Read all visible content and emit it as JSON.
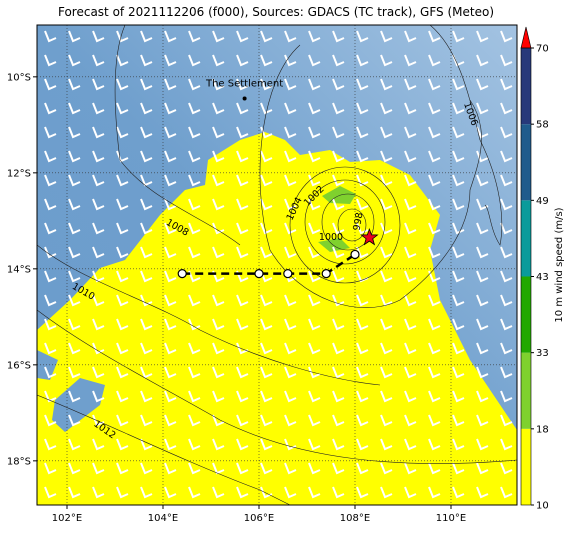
{
  "title": "Forecast of 2021112206 (f000), Sources: GDACS (TC track), GFS (Meteo)",
  "map": {
    "xlim": [
      101.375,
      111.375
    ],
    "ylim": [
      -18.92,
      -8.92
    ],
    "xticks": [
      {
        "value": 102,
        "label": "102°E"
      },
      {
        "value": 104,
        "label": "104°E"
      },
      {
        "value": 106,
        "label": "106°E"
      },
      {
        "value": 108,
        "label": "108°E"
      },
      {
        "value": 110,
        "label": "110°E"
      }
    ],
    "yticks": [
      {
        "value": -10,
        "label": "10°S"
      },
      {
        "value": -12,
        "label": "12°S"
      },
      {
        "value": -14,
        "label": "14°S"
      },
      {
        "value": -16,
        "label": "16°S"
      },
      {
        "value": -18,
        "label": "18°S"
      }
    ],
    "grid": true,
    "place": {
      "name": "The Settlement",
      "lon": 105.7,
      "lat": -10.45
    },
    "track": {
      "lon": [
        104.4,
        106.0,
        106.6,
        107.4,
        108.0
      ],
      "lat": [
        -14.1,
        -14.1,
        -14.1,
        -14.1,
        -13.7
      ]
    },
    "current": {
      "lon": 108.3,
      "lat": -13.35,
      "color": "#e8001c"
    },
    "contour_labels": [
      "1006",
      "1004",
      "1002",
      "1000",
      "998",
      "1008",
      "1010",
      "1012"
    ]
  },
  "colorbar": {
    "label": "10 m wind speed (m/s)",
    "ticks": [
      10,
      18,
      33,
      43,
      49,
      58,
      70
    ],
    "colors": [
      "#ffff00",
      "#7fd12e",
      "#22a800",
      "#0a9b9b",
      "#1f5b8c",
      "#27397a"
    ],
    "extend_color": "#ff0000"
  }
}
